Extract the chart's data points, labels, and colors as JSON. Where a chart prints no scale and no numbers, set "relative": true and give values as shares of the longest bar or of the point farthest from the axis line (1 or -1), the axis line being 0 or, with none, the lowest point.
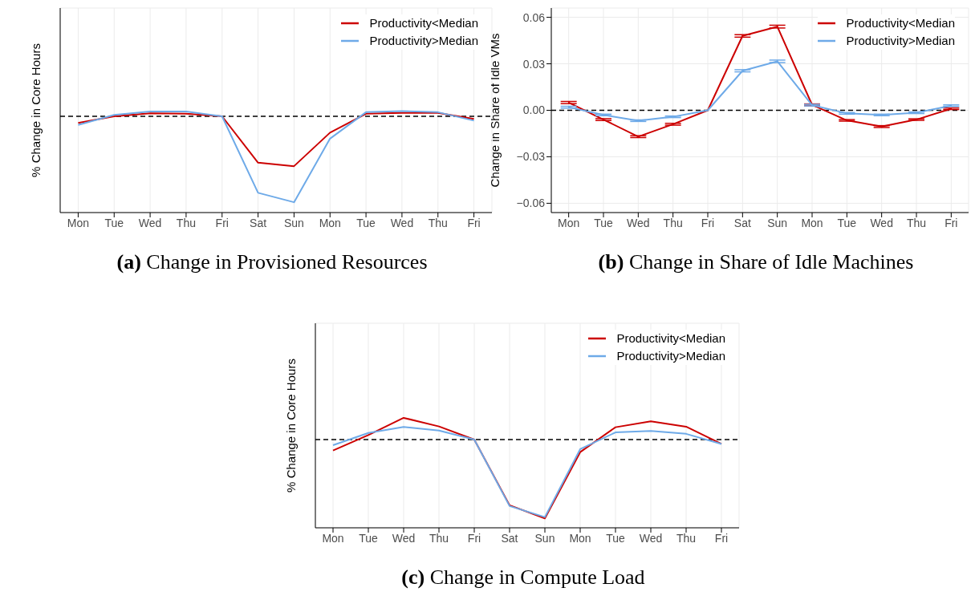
{
  "chart_data": [
    {
      "type": "line",
      "title": "(a) Change in Provisioned Resources",
      "ylabel": "% Change in Core Hours",
      "relative": true,
      "categories": [
        "Mon",
        "Tue",
        "Wed",
        "Thu",
        "Fri",
        "Sat",
        "Sun",
        "Mon",
        "Tue",
        "Wed",
        "Thu",
        "Fri"
      ],
      "tick_labels": "x",
      "grid": true,
      "legend": "top right",
      "marker": "none",
      "series": [
        {
          "name": "Productivity<Median",
          "color": "#cc0000",
          "values": [
            -0.077,
            0,
            0.035,
            0.03,
            0,
            -0.54,
            -0.58,
            -0.19,
            0.03,
            0.04,
            0.04,
            -0.03
          ]
        },
        {
          "name": "Productivity>Median",
          "color": "#6eaae8",
          "values": [
            -0.1,
            0.016,
            0.055,
            0.055,
            0,
            -0.89,
            -1,
            -0.26,
            0.048,
            0.06,
            0.048,
            -0.05
          ]
        }
      ],
      "ref_lines": [
        {
          "axis": "y",
          "value": 0,
          "line_style": "dashed",
          "color": "#000000"
        }
      ]
    },
    {
      "type": "line",
      "title": "(b) Change in Share of Idle Machines",
      "ylabel": "Change in Share of Idle VMs",
      "categories": [
        "Mon",
        "Tue",
        "Wed",
        "Thu",
        "Fri",
        "Sat",
        "Sun",
        "Mon",
        "Tue",
        "Wed",
        "Thu",
        "Fri"
      ],
      "ylim": [
        -0.066,
        0.066
      ],
      "yticks": [
        {
          "value": -0.06,
          "label": "−0.06"
        },
        {
          "value": -0.03,
          "label": "−0.03"
        },
        {
          "value": 0,
          "label": "0.00"
        },
        {
          "value": 0.03,
          "label": "0.03"
        },
        {
          "value": 0.06,
          "label": "0.06"
        }
      ],
      "grid": true,
      "legend": "top right",
      "marker": "none",
      "series": [
        {
          "name": "Productivity<Median",
          "color": "#cc0000",
          "values": [
            0.005,
            -0.006,
            -0.017,
            -0.009,
            0,
            0.048,
            0.054,
            0.0035,
            -0.0065,
            -0.0105,
            -0.006,
            0.001
          ],
          "errors": [
            0.0007,
            0.0006,
            0.0006,
            0.0006,
            0,
            0.0008,
            0.0009,
            0.0006,
            0.0005,
            0.0006,
            0.0005,
            0.0005
          ]
        },
        {
          "name": "Productivity>Median",
          "color": "#6eaae8",
          "values": [
            0.002,
            -0.003,
            -0.0067,
            -0.0042,
            0,
            0.0255,
            0.0316,
            0.0033,
            -0.002,
            -0.003,
            -0.0016,
            0.003
          ],
          "errors": [
            0.0006,
            0.0005,
            0.0005,
            0.0005,
            0,
            0.0007,
            0.0008,
            0.0005,
            0.0005,
            0.0005,
            0.0005,
            0.0005
          ]
        }
      ],
      "ref_lines": [
        {
          "axis": "y",
          "value": 0,
          "line_style": "dashed",
          "color": "#000000"
        }
      ]
    },
    {
      "type": "line",
      "title": "(c) Change in Compute Load",
      "ylabel": "% Change in Core Hours",
      "relative": true,
      "categories": [
        "Mon",
        "Tue",
        "Wed",
        "Thu",
        "Fri",
        "Sat",
        "Sun",
        "Mon",
        "Tue",
        "Wed",
        "Thu",
        "Fri"
      ],
      "tick_labels": "x",
      "grid": true,
      "legend": "top right",
      "marker": "none",
      "series": [
        {
          "name": "Productivity<Median",
          "color": "#cc0000",
          "values": [
            -0.14,
            0.056,
            0.275,
            0.166,
            0,
            -0.834,
            -1,
            -0.16,
            0.156,
            0.231,
            0.163,
            -0.056
          ]
        },
        {
          "name": "Productivity>Median",
          "color": "#6eaae8",
          "values": [
            -0.072,
            0.084,
            0.159,
            0.113,
            0,
            -0.844,
            -0.984,
            -0.122,
            0.09,
            0.109,
            0.072,
            -0.056
          ]
        }
      ],
      "ref_lines": [
        {
          "axis": "y",
          "value": 0,
          "line_style": "dashed",
          "color": "#000000"
        }
      ]
    }
  ]
}
